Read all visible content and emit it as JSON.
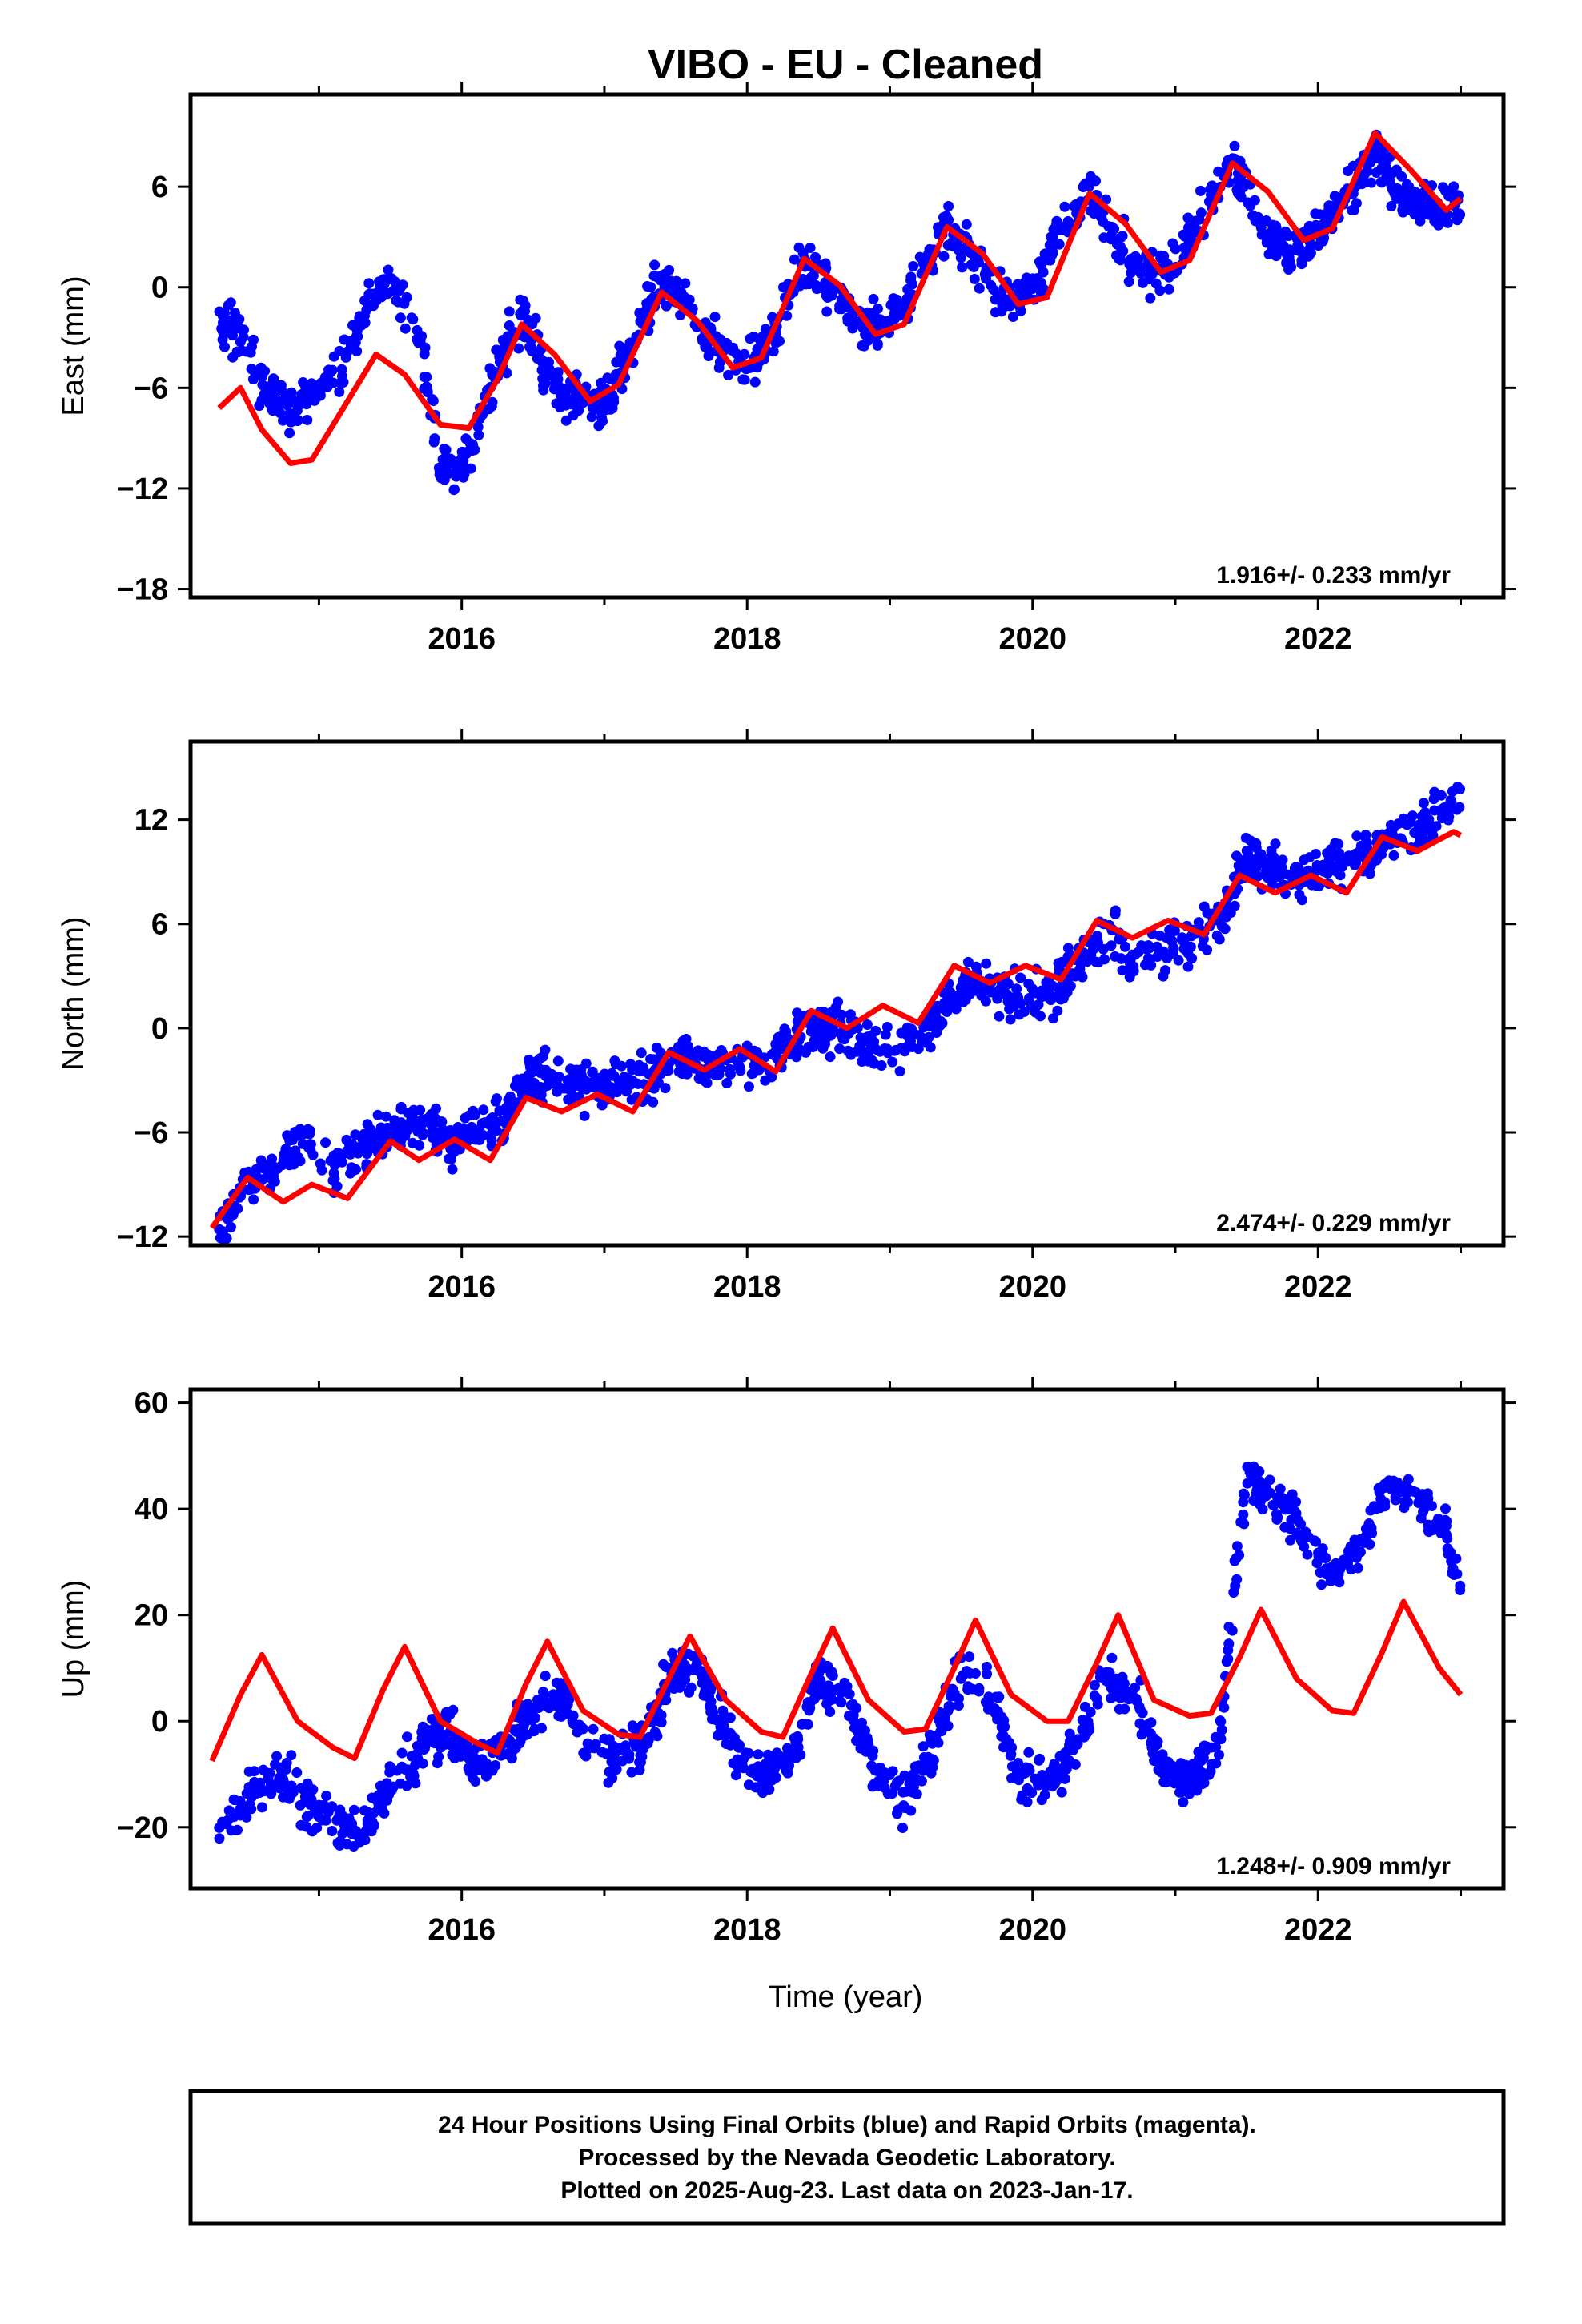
{
  "title": "VIBO  - EU - Cleaned",
  "xlabel": "Time (year)",
  "footer": [
    "24 Hour Positions Using Final Orbits (blue) and Rapid Orbits (magenta).",
    "Processed by the Nevada Geodetic Laboratory.",
    "Plotted on 2025-Aug-23. Last data on 2023-Jan-17."
  ],
  "colors": {
    "data": "#0000ff",
    "model": "#ff0000",
    "axis": "#000000"
  },
  "chart_data": [
    {
      "type": "scatter",
      "name": "East",
      "ylabel": "East (mm)",
      "xlim": [
        2014.1,
        2023.3
      ],
      "ylim": [
        -18.5,
        11.5
      ],
      "xticks": [
        2016,
        2018,
        2020,
        2022
      ],
      "xtick_labels": [
        "2016",
        "2018",
        "2020",
        "2022"
      ],
      "yticks": [
        -18,
        -12,
        -6,
        0,
        6
      ],
      "ytick_labels": [
        "−18",
        "−12",
        "−6",
        "0",
        "6"
      ],
      "rate_label": "1.916+/- 0.233 mm/yr",
      "observations": {
        "x": [
          2014.3,
          2014.45,
          2014.6,
          2014.8,
          2015.0,
          2015.15,
          2015.35,
          2015.5,
          2015.7,
          2015.85,
          2016.0,
          2016.15,
          2016.3,
          2016.45,
          2016.6,
          2016.8,
          2017.0,
          2017.2,
          2017.4,
          2017.6,
          2017.8,
          2018.0,
          2018.2,
          2018.4,
          2018.6,
          2018.8,
          2019.0,
          2019.2,
          2019.4,
          2019.6,
          2019.8,
          2020.0,
          2020.2,
          2020.4,
          2020.6,
          2020.8,
          2021.0,
          2021.2,
          2021.4,
          2021.6,
          2021.8,
          2022.0,
          2022.2,
          2022.4,
          2022.6,
          2022.8,
          2023.0
        ],
        "y": [
          -1.8,
          -3.0,
          -6.0,
          -7.2,
          -6.0,
          -5.2,
          -0.5,
          0.2,
          -3.2,
          -10.5,
          -11.2,
          -7.5,
          -3.5,
          -1.8,
          -5.2,
          -7.2,
          -6.8,
          -3.5,
          0.5,
          -1.2,
          -3.8,
          -5.0,
          -2.5,
          1.5,
          -0.2,
          -2.5,
          -2.2,
          0.5,
          3.5,
          1.8,
          -0.8,
          -0.2,
          3.5,
          5.8,
          2.5,
          1.0,
          1.5,
          4.5,
          7.5,
          4.0,
          2.0,
          3.5,
          5.5,
          8.0,
          5.5,
          4.5,
          5.0
        ]
      },
      "model": {
        "x": [
          2014.3,
          2014.45,
          2014.6,
          2014.8,
          2014.95,
          2015.15,
          2015.4,
          2015.6,
          2015.85,
          2016.05,
          2016.25,
          2016.42,
          2016.65,
          2016.9,
          2017.1,
          2017.4,
          2017.65,
          2017.9,
          2018.1,
          2018.4,
          2018.65,
          2018.9,
          2019.1,
          2019.4,
          2019.65,
          2019.9,
          2020.1,
          2020.4,
          2020.65,
          2020.9,
          2021.1,
          2021.4,
          2021.65,
          2021.9,
          2022.1,
          2022.4,
          2022.65,
          2022.9,
          2023.0
        ],
        "y": [
          -7.2,
          -6.0,
          -8.5,
          -10.5,
          -10.3,
          -7.5,
          -4.0,
          -5.2,
          -8.2,
          -8.4,
          -5.5,
          -2.2,
          -4.0,
          -6.8,
          -5.8,
          -0.3,
          -2.0,
          -4.8,
          -4.2,
          1.7,
          0.1,
          -2.8,
          -2.2,
          3.6,
          2.0,
          -1.0,
          -0.6,
          5.6,
          3.8,
          0.9,
          1.6,
          7.4,
          5.7,
          2.8,
          3.5,
          9.2,
          7.0,
          4.6,
          5.3
        ]
      }
    },
    {
      "type": "scatter",
      "name": "North",
      "ylabel": "North (mm)",
      "xlim": [
        2014.1,
        2023.3
      ],
      "ylim": [
        -12.5,
        16.5
      ],
      "xticks": [
        2016,
        2018,
        2020,
        2022
      ],
      "xtick_labels": [
        "2016",
        "2018",
        "2020",
        "2022"
      ],
      "yticks": [
        -12,
        -6,
        0,
        6,
        12
      ],
      "ytick_labels": [
        "−12",
        "−6",
        "0",
        "6",
        "12"
      ],
      "rate_label": "2.474+/- 0.229 mm/yr",
      "observations": {
        "x": [
          2014.3,
          2014.5,
          2014.7,
          2014.9,
          2015.1,
          2015.3,
          2015.5,
          2015.7,
          2015.9,
          2016.1,
          2016.3,
          2016.5,
          2016.7,
          2016.9,
          2017.1,
          2017.3,
          2017.5,
          2017.7,
          2017.9,
          2018.1,
          2018.3,
          2018.5,
          2018.7,
          2018.9,
          2019.1,
          2019.3,
          2019.5,
          2019.7,
          2019.9,
          2020.1,
          2020.3,
          2020.5,
          2020.7,
          2020.9,
          2021.1,
          2021.3,
          2021.5,
          2021.7,
          2021.9,
          2022.1,
          2022.3,
          2022.5,
          2022.7,
          2022.9,
          2023.0
        ],
        "y": [
          -11.5,
          -9.0,
          -8.0,
          -6.5,
          -8.0,
          -7.0,
          -6.0,
          -5.5,
          -6.5,
          -6.0,
          -5.0,
          -2.5,
          -3.0,
          -3.5,
          -3.0,
          -2.8,
          -1.5,
          -2.0,
          -1.8,
          -2.0,
          -1.0,
          0.0,
          -0.5,
          -0.8,
          -1.2,
          0.5,
          2.5,
          2.5,
          1.5,
          2.0,
          3.0,
          5.5,
          4.0,
          4.5,
          5.0,
          6.0,
          10.0,
          9.0,
          8.5,
          9.5,
          10.0,
          11.0,
          11.5,
          12.5,
          13.5
        ]
      },
      "model": {
        "x": [
          2014.25,
          2014.5,
          2014.75,
          2014.95,
          2015.2,
          2015.5,
          2015.7,
          2015.95,
          2016.2,
          2016.45,
          2016.7,
          2016.95,
          2017.2,
          2017.45,
          2017.7,
          2017.95,
          2018.2,
          2018.45,
          2018.7,
          2018.95,
          2019.2,
          2019.45,
          2019.7,
          2019.95,
          2020.2,
          2020.45,
          2020.7,
          2020.95,
          2021.2,
          2021.45,
          2021.7,
          2021.95,
          2022.2,
          2022.45,
          2022.7,
          2022.95,
          2023.0
        ],
        "y": [
          -11.5,
          -8.6,
          -10.0,
          -9.0,
          -9.8,
          -6.5,
          -7.6,
          -6.4,
          -7.6,
          -4.0,
          -4.8,
          -3.8,
          -4.8,
          -1.4,
          -2.4,
          -1.2,
          -2.5,
          1.0,
          0.0,
          1.3,
          0.3,
          3.6,
          2.6,
          3.6,
          2.8,
          6.2,
          5.2,
          6.2,
          5.4,
          8.8,
          7.8,
          8.8,
          7.8,
          11.0,
          10.2,
          11.3,
          11.1
        ]
      }
    },
    {
      "type": "scatter",
      "name": "Up",
      "ylabel": "Up (mm)",
      "xlim": [
        2014.1,
        2023.3
      ],
      "ylim": [
        -31.5,
        62.5
      ],
      "xticks": [
        2016,
        2018,
        2020,
        2022
      ],
      "xtick_labels": [
        "2016",
        "2018",
        "2020",
        "2022"
      ],
      "yticks": [
        -20,
        0,
        20,
        40,
        60
      ],
      "ytick_labels": [
        "−20",
        "0",
        "20",
        "40",
        "60"
      ],
      "rate_label": "1.248+/- 0.909 mm/yr",
      "observations": {
        "x": [
          2014.3,
          2014.5,
          2014.7,
          2014.9,
          2015.1,
          2015.3,
          2015.5,
          2015.7,
          2015.9,
          2016.1,
          2016.3,
          2016.5,
          2016.7,
          2016.9,
          2017.1,
          2017.3,
          2017.5,
          2017.7,
          2017.9,
          2018.1,
          2018.3,
          2018.5,
          2018.7,
          2018.9,
          2019.1,
          2019.3,
          2019.5,
          2019.7,
          2019.9,
          2020.1,
          2020.3,
          2020.5,
          2020.7,
          2020.9,
          2021.1,
          2021.3,
          2021.5,
          2021.7,
          2021.9,
          2022.1,
          2022.3,
          2022.5,
          2022.7,
          2022.9,
          2023.0
        ],
        "y": [
          -20,
          -15,
          -10,
          -15,
          -18,
          -22,
          -12,
          -5,
          -2,
          -8,
          -5,
          2,
          5,
          -5,
          -8,
          -3,
          10,
          8,
          -5,
          -10,
          -8,
          8,
          5,
          -10,
          -15,
          -5,
          10,
          5,
          -10,
          -12,
          -5,
          8,
          5,
          -8,
          -12,
          -5,
          46,
          42,
          35,
          28,
          32,
          45,
          42,
          35,
          25
        ]
      },
      "model": {
        "x": [
          2014.25,
          2014.45,
          2014.6,
          2014.85,
          2015.1,
          2015.25,
          2015.45,
          2015.6,
          2015.85,
          2016.1,
          2016.25,
          2016.45,
          2016.6,
          2016.85,
          2017.1,
          2017.25,
          2017.45,
          2017.6,
          2017.85,
          2018.1,
          2018.25,
          2018.45,
          2018.6,
          2018.85,
          2019.1,
          2019.25,
          2019.45,
          2019.6,
          2019.85,
          2020.1,
          2020.25,
          2020.45,
          2020.6,
          2020.85,
          2021.1,
          2021.25,
          2021.45,
          2021.6,
          2021.85,
          2022.1,
          2022.25,
          2022.45,
          2022.6,
          2022.85,
          2023.0
        ],
        "y": [
          -7.5,
          5,
          12.5,
          0,
          -5,
          -7,
          6,
          14,
          0,
          -4,
          -6,
          7,
          15,
          2,
          -2.5,
          -3,
          8,
          16,
          4,
          -2,
          -3,
          9,
          17.5,
          4,
          -2,
          -1.5,
          10,
          19,
          5,
          0,
          0,
          11,
          20,
          4,
          1,
          1.5,
          12,
          21,
          8,
          2,
          1.5,
          13,
          22.5,
          10,
          5
        ]
      }
    }
  ]
}
